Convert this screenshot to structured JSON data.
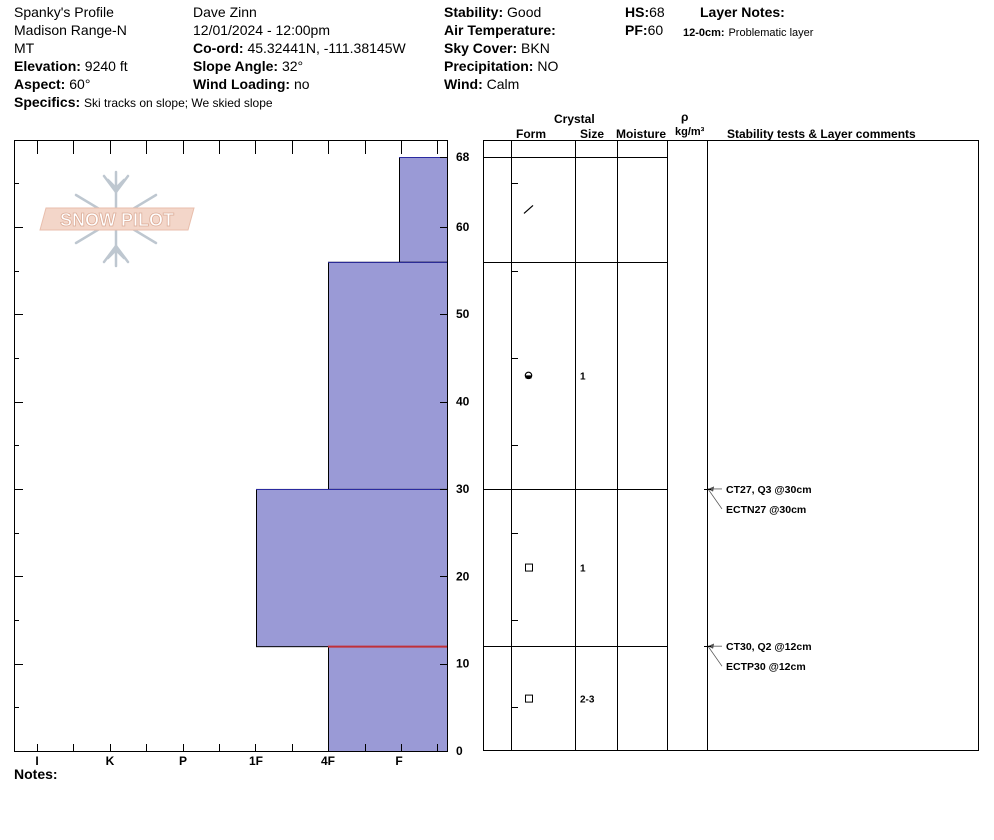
{
  "header": {
    "profile_name": "Spanky's Profile",
    "range": "Madison Range-N",
    "state": "MT",
    "elevation_label": "Elevation:",
    "elevation_value": "9240 ft",
    "aspect_label": "Aspect:",
    "aspect_value": "60°",
    "specifics_label": "Specifics:",
    "specifics_value": "Ski tracks on slope; We skied slope",
    "observer": "Dave Zinn",
    "datetime": "12/01/2024 - 12:00pm",
    "coord_label": "Co-ord:",
    "coord_value": "45.32441N, -111.38145W",
    "slope_label": "Slope Angle:",
    "slope_value": "32°",
    "wind_loading_label": "Wind Loading:",
    "wind_loading_value": "no",
    "stability_label": "Stability:",
    "stability_value": "Good",
    "air_temp_label": "Air Temperature:",
    "air_temp_value": "",
    "sky_label": "Sky Cover:",
    "sky_value": "BKN",
    "precip_label": "Precipitation:",
    "precip_value": "NO",
    "wind_label": "Wind:",
    "wind_value": "Calm",
    "hs_label": "HS:",
    "hs_value": "68",
    "pf_label": "PF:",
    "pf_value": "60",
    "layer_notes_label": "Layer Notes:",
    "layer_note_depth": "12-0cm:",
    "layer_note_text": "Problematic layer"
  },
  "logo_text": "SNOW PILOT",
  "columns": {
    "crystal": "Crystal",
    "form": "Form",
    "size": "Size",
    "moisture": "Moisture",
    "rho": "ρ",
    "density_unit": "kg/m³",
    "stability": "Stability tests & Layer comments"
  },
  "notes_label": "Notes:",
  "chart_data": {
    "type": "bar",
    "orientation": "horizontal",
    "y_axis": {
      "label": "",
      "range": [
        0,
        68
      ],
      "ticks": [
        0,
        10,
        20,
        30,
        40,
        50,
        60,
        68
      ]
    },
    "x_axis": {
      "hardness_ticks": [
        "I",
        "K",
        "P",
        "1F",
        "4F",
        "F"
      ]
    },
    "layers": [
      {
        "top": 68,
        "bottom": 56,
        "hardness": "F"
      },
      {
        "top": 56,
        "bottom": 30,
        "hardness": "4F"
      },
      {
        "top": 30,
        "bottom": 12,
        "hardness": "1F"
      },
      {
        "top": 12,
        "bottom": 0,
        "hardness": "4F"
      }
    ],
    "boundaries": [
      68,
      56,
      30,
      12
    ],
    "problem_layer_depth": 12,
    "crystals": [
      {
        "depth": 62,
        "form": "precip-particles",
        "size": ""
      },
      {
        "depth": 43,
        "form": "rounded-faceted",
        "size": "1"
      },
      {
        "depth": 21,
        "form": "faceted",
        "size": "1"
      },
      {
        "depth": 6,
        "form": "faceted",
        "size": "2-3"
      }
    ],
    "tests": [
      {
        "depth": 30,
        "text": "CT27, Q3 @30cm"
      },
      {
        "depth": 30,
        "text": "ECTN27 @30cm"
      },
      {
        "depth": 12,
        "text": "CT30, Q2 @12cm"
      },
      {
        "depth": 12,
        "text": "ECTP30 @12cm"
      }
    ],
    "colors": {
      "layer_fill": "#9a9ad6",
      "layer_stroke": "#2a2aa0",
      "problem_line": "#c0303a"
    }
  }
}
